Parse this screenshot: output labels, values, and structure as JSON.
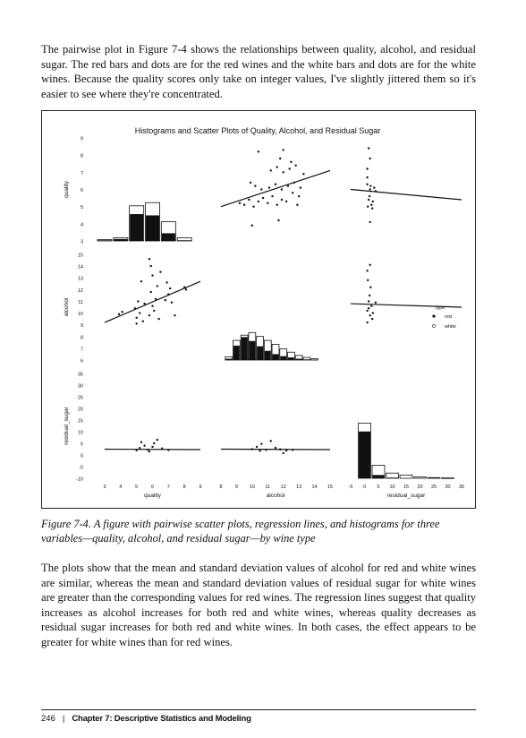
{
  "body": {
    "paragraph_1": "The pairwise plot in Figure 7-4 shows the relationships between quality, alcohol, and residual sugar. The red bars and dots are for the red wines and the white bars and dots are for the white wines. Because the quality scores only take on integer values, I've slightly jittered them so it's easier to see where they're concentrated.",
    "paragraph_2": "The plots show that the mean and standard deviation values of alcohol for red and white wines are similar, whereas the mean and standard deviation values of residual sugar for white wines are greater than the corresponding values for red wines. The regression lines suggest that quality increases as alcohol increases for both red and white wines, whereas quality decreases as residual sugar increases for both red and white wines. In both cases, the effect appears to be greater for white wines than for red wines."
  },
  "figure": {
    "caption": "Figure 7-4. A figure with pairwise scatter plots, regression lines, and histograms for three variables—quality, alcohol, and residual sugar—by wine type"
  },
  "chart_data": {
    "type": "scatter",
    "title": "Histograms and Scatter Plots of Quality, Alcohol, and Residual Sugar",
    "variables": [
      "quality",
      "alcohol",
      "residual_sugar"
    ],
    "legend": {
      "placement": "right",
      "entries": [
        "type",
        "red",
        "white"
      ]
    },
    "axes": {
      "quality": {
        "range": [
          3,
          9
        ],
        "ticks": [
          "3",
          "4",
          "5",
          "6",
          "7",
          "8",
          "9"
        ]
      },
      "alcohol": {
        "range": [
          8,
          15
        ],
        "ticks": [
          "8",
          "9",
          "10",
          "11",
          "12",
          "13",
          "14",
          "15"
        ],
        "y_ticks": [
          "6",
          "7",
          "8",
          "9",
          "10",
          "11",
          "12",
          "13",
          "14",
          "15"
        ]
      },
      "residual_sugar": {
        "range": [
          -5,
          35
        ],
        "ticks": [
          "-5",
          "0",
          "5",
          "10",
          "15",
          "20",
          "25",
          "30",
          "35"
        ],
        "y_ticks": [
          "-10",
          "-5",
          "0",
          "5",
          "10",
          "15",
          "20",
          "25",
          "30",
          "35"
        ]
      }
    },
    "histograms": {
      "quality": {
        "bins": [
          3,
          4,
          5,
          6,
          7,
          8
        ],
        "white": [
          0.02,
          0.05,
          0.55,
          0.6,
          0.3,
          0.05
        ],
        "red": [
          0.01,
          0.03,
          0.42,
          0.4,
          0.12,
          0.01
        ]
      },
      "alcohol": {
        "bins": [
          8.5,
          9,
          9.5,
          10,
          10.5,
          11,
          11.5,
          12,
          12.5,
          13,
          13.5,
          14
        ],
        "white": [
          0.05,
          0.3,
          0.38,
          0.42,
          0.36,
          0.3,
          0.24,
          0.17,
          0.12,
          0.07,
          0.04,
          0.02
        ],
        "red": [
          0.02,
          0.22,
          0.35,
          0.29,
          0.21,
          0.14,
          0.09,
          0.06,
          0.04,
          0.02,
          0.01,
          0.005
        ]
      },
      "residual_sugar": {
        "bins": [
          0,
          5,
          10,
          15,
          20,
          25,
          30
        ],
        "white": [
          0.85,
          0.2,
          0.08,
          0.05,
          0.02,
          0.01,
          0.005
        ],
        "red": [
          0.72,
          0.05,
          0.01,
          0.0,
          0.0,
          0.0,
          0.0
        ]
      }
    },
    "regression_lines": {
      "alcohol_vs_quality": {
        "x_var": "alcohol",
        "y_var": "quality",
        "points": [
          [
            8,
            5.0
          ],
          [
            15,
            7.1
          ]
        ]
      },
      "residual_sugar_vs_quality": {
        "x_var": "residual_sugar",
        "y_var": "quality",
        "points": [
          [
            -5,
            6.0
          ],
          [
            35,
            5.4
          ]
        ]
      },
      "quality_vs_alcohol": {
        "x_var": "quality",
        "y_var": "alcohol",
        "points": [
          [
            3,
            9.2
          ],
          [
            9,
            12.7
          ]
        ]
      },
      "residual_sugar_vs_alcohol": {
        "x_var": "residual_sugar",
        "y_var": "alcohol",
        "points": [
          [
            -5,
            10.8
          ],
          [
            35,
            10.5
          ]
        ]
      },
      "quality_vs_residual_sugar": {
        "x_var": "quality",
        "y_var": "residual_sugar",
        "points": [
          [
            3,
            2.5
          ],
          [
            9,
            2.3
          ]
        ]
      },
      "alcohol_vs_residual_sugar": {
        "x_var": "alcohol",
        "y_var": "residual_sugar",
        "points": [
          [
            8,
            2.5
          ],
          [
            15,
            2.3
          ]
        ]
      }
    },
    "scatter": {
      "alcohol_vs_quality": [
        [
          9.5,
          5.1
        ],
        [
          9.8,
          5.4
        ],
        [
          10.1,
          5.0
        ],
        [
          10.4,
          5.3
        ],
        [
          10.7,
          5.5
        ],
        [
          11.0,
          5.2
        ],
        [
          11.3,
          5.6
        ],
        [
          11.6,
          5.1
        ],
        [
          11.9,
          5.4
        ],
        [
          12.2,
          5.3
        ],
        [
          12.6,
          5.8
        ],
        [
          13.0,
          5.6
        ],
        [
          9.2,
          5.2
        ],
        [
          10.2,
          6.2
        ],
        [
          10.6,
          6.0
        ],
        [
          11.1,
          6.1
        ],
        [
          11.5,
          6.3
        ],
        [
          11.9,
          6.0
        ],
        [
          12.3,
          6.2
        ],
        [
          12.7,
          6.4
        ],
        [
          13.1,
          6.1
        ],
        [
          11.2,
          7.1
        ],
        [
          11.6,
          7.3
        ],
        [
          12.0,
          7.0
        ],
        [
          12.4,
          7.2
        ],
        [
          12.8,
          7.4
        ],
        [
          13.3,
          6.9
        ],
        [
          11.8,
          7.8
        ],
        [
          12.5,
          7.6
        ],
        [
          10.4,
          8.2
        ],
        [
          12.0,
          8.3
        ],
        [
          11.7,
          4.2
        ],
        [
          10.0,
          3.9
        ],
        [
          12.9,
          5.1
        ],
        [
          9.9,
          6.4
        ]
      ],
      "residual_sugar_vs_quality": [
        [
          1,
          6.3
        ],
        [
          2,
          6.0
        ],
        [
          1.5,
          5.4
        ],
        [
          2.5,
          5.1
        ],
        [
          3,
          5.3
        ],
        [
          1.8,
          5.6
        ],
        [
          2.2,
          6.2
        ],
        [
          3.5,
          6.1
        ],
        [
          1.2,
          5.0
        ],
        [
          2.8,
          4.9
        ],
        [
          1,
          7.2
        ],
        [
          2,
          7.8
        ],
        [
          1.5,
          8.4
        ],
        [
          4,
          5.9
        ],
        [
          2,
          4.1
        ],
        [
          1,
          6.7
        ]
      ],
      "quality_vs_alcohol": [
        [
          5,
          9.6
        ],
        [
          5.2,
          10.0
        ],
        [
          5.4,
          9.3
        ],
        [
          4.9,
          10.4
        ],
        [
          5.1,
          11.0
        ],
        [
          5.5,
          10.8
        ],
        [
          5.0,
          9.1
        ],
        [
          6.0,
          10.6
        ],
        [
          6.2,
          11.2
        ],
        [
          5.9,
          11.8
        ],
        [
          6.3,
          12.3
        ],
        [
          6.1,
          10.2
        ],
        [
          5.8,
          9.8
        ],
        [
          6.4,
          9.5
        ],
        [
          7.0,
          11.6
        ],
        [
          7.1,
          12.1
        ],
        [
          6.9,
          12.6
        ],
        [
          7.2,
          10.9
        ],
        [
          6.8,
          11.1
        ],
        [
          8.0,
          12.2
        ],
        [
          8.1,
          12.0
        ],
        [
          5.8,
          14.6
        ],
        [
          5.9,
          14.0
        ],
        [
          6.0,
          13.2
        ],
        [
          4.1,
          10.1
        ],
        [
          3.9,
          9.9
        ],
        [
          6.5,
          13.5
        ],
        [
          7.4,
          9.8
        ],
        [
          5.3,
          12.7
        ]
      ],
      "residual_sugar_vs_alcohol": [
        [
          1,
          10.2
        ],
        [
          2,
          9.8
        ],
        [
          1.5,
          11.0
        ],
        [
          2.5,
          10.6
        ],
        [
          3,
          10.0
        ],
        [
          1.8,
          11.5
        ],
        [
          2.2,
          12.2
        ],
        [
          1.2,
          12.8
        ],
        [
          2.8,
          9.5
        ],
        [
          1,
          13.6
        ],
        [
          2,
          14.1
        ],
        [
          1.5,
          10.4
        ],
        [
          4,
          10.9
        ],
        [
          1,
          9.2
        ]
      ],
      "quality_vs_residual_sugar": [
        [
          5,
          2
        ],
        [
          5.2,
          3
        ],
        [
          5.5,
          4
        ],
        [
          5.7,
          2.2
        ],
        [
          6,
          3.5
        ],
        [
          6.1,
          5
        ],
        [
          6.3,
          6.5
        ],
        [
          5.8,
          1.5
        ],
        [
          6.6,
          2.8
        ],
        [
          7,
          2.1
        ],
        [
          5.3,
          5.5
        ]
      ],
      "alcohol_vs_residual_sugar": [
        [
          10,
          2.5
        ],
        [
          10.3,
          3.5
        ],
        [
          10.6,
          4.8
        ],
        [
          10.9,
          2.2
        ],
        [
          11.2,
          6
        ],
        [
          11.5,
          3.1
        ],
        [
          11.8,
          2.4
        ],
        [
          10.5,
          1.8
        ],
        [
          12.2,
          1.9
        ],
        [
          12.6,
          2.2
        ],
        [
          12.0,
          0.8
        ]
      ]
    }
  },
  "footer": {
    "page_number": "246",
    "separator": "|",
    "chapter": "Chapter 7: Descriptive Statistics and Modeling"
  }
}
